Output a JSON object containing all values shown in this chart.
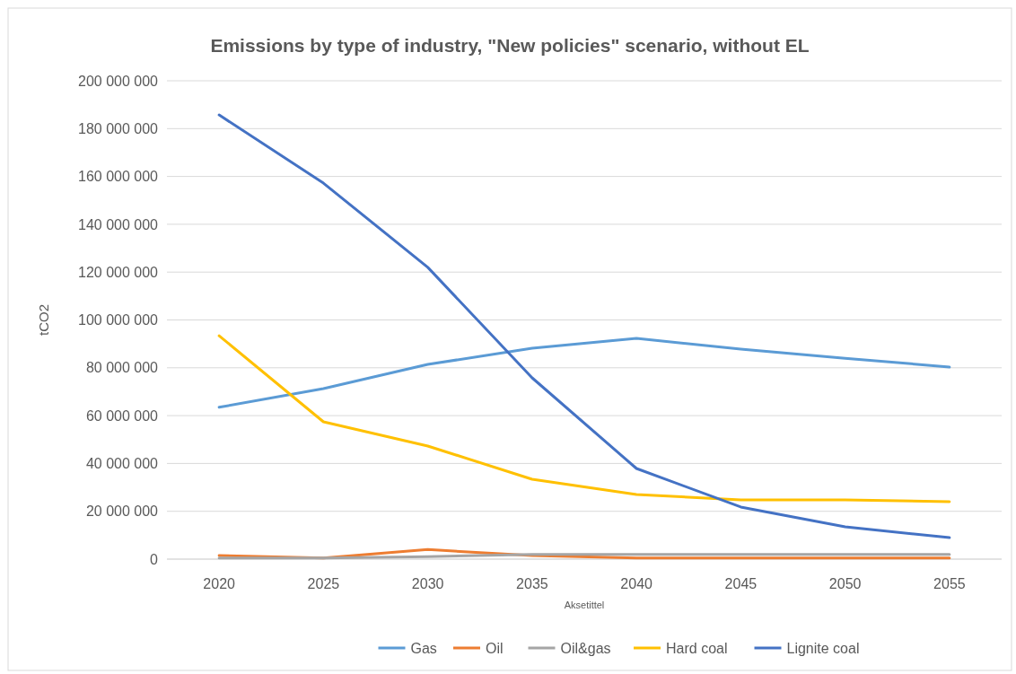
{
  "chart_data": {
    "type": "line",
    "title": "Emissions by type of industry, \"New policies\" scenario, without EL",
    "xlabel": "Aksetittel",
    "ylabel": "tCO2",
    "categories": [
      "2020",
      "2025",
      "2030",
      "2035",
      "2040",
      "2045",
      "2050",
      "2055"
    ],
    "series": [
      {
        "name": "Gas",
        "color": "#5b9bd5",
        "values": [
          63500000,
          71300000,
          81400000,
          88200000,
          92300000,
          87800000,
          84000000,
          80300000
        ]
      },
      {
        "name": "Oil",
        "color": "#ed7d31",
        "values": [
          1500000,
          500000,
          4000000,
          1500000,
          500000,
          500000,
          500000,
          500000
        ]
      },
      {
        "name": "Oil&gas",
        "color": "#a5a5a5",
        "values": [
          500000,
          500000,
          1000000,
          2000000,
          2000000,
          2000000,
          2000000,
          2000000
        ]
      },
      {
        "name": "Hard coal",
        "color": "#ffc000",
        "values": [
          93400000,
          57400000,
          47300000,
          33400000,
          27000000,
          24800000,
          24800000,
          24000000
        ]
      },
      {
        "name": "Lignite coal",
        "color": "#4472c4",
        "values": [
          185700000,
          157200000,
          122000000,
          75800000,
          37900000,
          21800000,
          13500000,
          9000000
        ]
      }
    ],
    "ylim": [
      0,
      200000000
    ],
    "yticks": [
      {
        "value": 0,
        "label": "0"
      },
      {
        "value": 20000000,
        "label": "20 000 000"
      },
      {
        "value": 40000000,
        "label": "40 000 000"
      },
      {
        "value": 60000000,
        "label": "60 000 000"
      },
      {
        "value": 80000000,
        "label": "80 000 000"
      },
      {
        "value": 100000000,
        "label": "100 000 000"
      },
      {
        "value": 120000000,
        "label": "120 000 000"
      },
      {
        "value": 140000000,
        "label": "140 000 000"
      },
      {
        "value": 160000000,
        "label": "160 000 000"
      },
      {
        "value": 180000000,
        "label": "180 000 000"
      },
      {
        "value": 200000000,
        "label": "200 000 000"
      }
    ],
    "grid": "y",
    "legend": "bottom",
    "marker": "none",
    "line_style": "solid"
  }
}
